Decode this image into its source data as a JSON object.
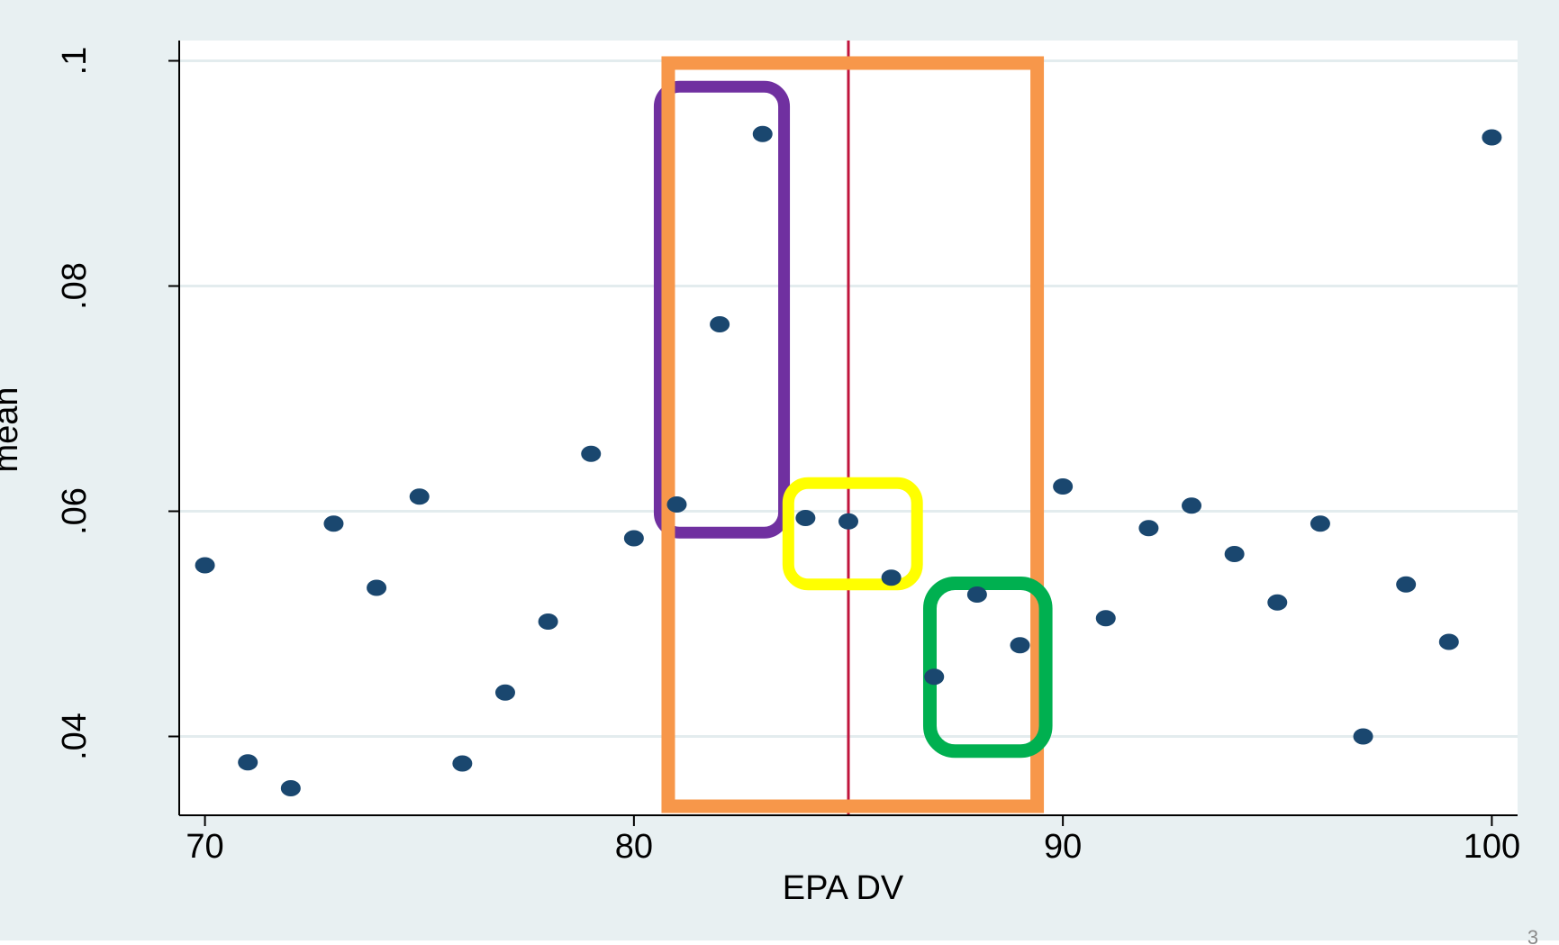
{
  "colors": {
    "page_background": "#ffffff",
    "chart_background": "#e8f0f2",
    "plot_background": "#ffffff",
    "grid": "#e3ecee",
    "axis": "#000000",
    "marker": "#1a476f",
    "reference_line": "#c0143c",
    "box_orange": "#f7974a",
    "box_purple": "#7030a0",
    "box_yellow": "#ffff00",
    "box_green": "#00b050"
  },
  "page_number": "3",
  "chart_data": {
    "type": "scatter",
    "xlabel": "EPA DV",
    "ylabel": "mean",
    "xlim": [
      69.4,
      100.6
    ],
    "ylim": [
      0.033,
      0.1018
    ],
    "x_ticks": [
      {
        "value": 70,
        "label": "70"
      },
      {
        "value": 80,
        "label": "80"
      },
      {
        "value": 90,
        "label": "90"
      },
      {
        "value": 100,
        "label": "100"
      }
    ],
    "y_ticks": [
      {
        "value": 0.04,
        "label": ".04"
      },
      {
        "value": 0.06,
        "label": ".06"
      },
      {
        "value": 0.08,
        "label": ".08"
      },
      {
        "value": 0.1,
        "label": ".1"
      }
    ],
    "grid": true,
    "series": [
      {
        "points": [
          [
            70,
            0.0552
          ],
          [
            71,
            0.0377
          ],
          [
            72,
            0.0354
          ],
          [
            73,
            0.0589
          ],
          [
            74,
            0.0532
          ],
          [
            75,
            0.0613
          ],
          [
            76,
            0.0376
          ],
          [
            77,
            0.0439
          ],
          [
            78,
            0.0502
          ],
          [
            79,
            0.0651
          ],
          [
            80,
            0.0576
          ],
          [
            81,
            0.0606
          ],
          [
            82,
            0.0766
          ],
          [
            83,
            0.0935
          ],
          [
            84,
            0.0594
          ],
          [
            85,
            0.0591
          ],
          [
            86,
            0.0541
          ],
          [
            87,
            0.0453
          ],
          [
            88,
            0.0526
          ],
          [
            89,
            0.0481
          ],
          [
            90,
            0.0622
          ],
          [
            91,
            0.0505
          ],
          [
            92,
            0.0585
          ],
          [
            93,
            0.0605
          ],
          [
            94,
            0.0562
          ],
          [
            95,
            0.0519
          ],
          [
            96,
            0.0589
          ],
          [
            97,
            0.04
          ],
          [
            98,
            0.0535
          ],
          [
            99,
            0.0484
          ],
          [
            100,
            0.0932
          ]
        ]
      }
    ],
    "reference_line_x": 85,
    "highlight_boxes": [
      {
        "name": "orange",
        "x_range": [
          80.8,
          89.4
        ],
        "y_range": [
          0.0338,
          0.0998
        ]
      },
      {
        "name": "purple",
        "x_range": [
          80.6,
          83.5
        ],
        "y_range": [
          0.0581,
          0.0977
        ]
      },
      {
        "name": "yellow",
        "x_range": [
          83.6,
          86.6
        ],
        "y_range": [
          0.0535,
          0.0625
        ]
      },
      {
        "name": "green",
        "x_range": [
          86.9,
          89.6
        ],
        "y_range": [
          0.0387,
          0.0536
        ]
      }
    ]
  }
}
